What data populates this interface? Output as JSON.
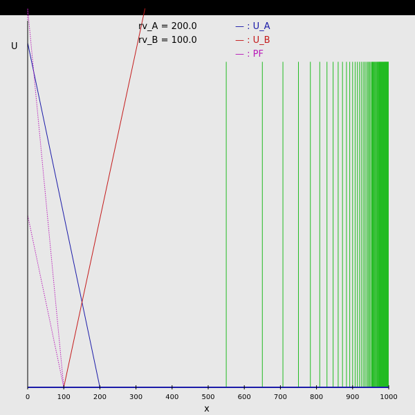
{
  "chart_data": {
    "type": "line",
    "xlabel": "x",
    "ylabel": "U",
    "xlim": [
      0,
      1000
    ],
    "ylim": [
      0,
      1
    ],
    "x_ticks": [
      0,
      100,
      200,
      300,
      400,
      500,
      600,
      700,
      800,
      900,
      1000
    ],
    "params": [
      {
        "label": "rv_A = 200.0"
      },
      {
        "label": "rv_B = 100.0"
      }
    ],
    "legend": [
      {
        "text": "— : U_A",
        "color": "#1a1aa8"
      },
      {
        "text": "— : U_B",
        "color": "#c41a1a"
      },
      {
        "text": "— : PF",
        "color": "#b81ab8"
      }
    ],
    "series": [
      {
        "name": "U_A",
        "color": "#1a1aa8",
        "x": [
          0,
          200,
          1000
        ],
        "y": [
          1.0,
          0.0,
          0.0
        ]
      },
      {
        "name": "U_B",
        "color": "#c41a1a",
        "x": [
          0,
          100,
          325
        ],
        "y": [
          0.0,
          0.0,
          1.1
        ]
      },
      {
        "name": "PF",
        "color": "#b81ab8",
        "x": [
          0,
          0,
          100,
          0
        ],
        "y": [
          0.5,
          1.1,
          0.0,
          0.5
        ]
      }
    ],
    "vlines": {
      "color": "#22bb22",
      "x_start": 550,
      "x_end": 1000,
      "y_top": 0.945,
      "positions": [
        550,
        650,
        707,
        750,
        783,
        809,
        829,
        846,
        860,
        872,
        883,
        892,
        900,
        907,
        913,
        919,
        924,
        929,
        933,
        937,
        941,
        944,
        947,
        950,
        953,
        955,
        957,
        959,
        961,
        963,
        965,
        966,
        968,
        969,
        971,
        972,
        973,
        974,
        975,
        976,
        977,
        978,
        979,
        980,
        981,
        982,
        983,
        984,
        985,
        986,
        987,
        988,
        989,
        990,
        991,
        992,
        993,
        994,
        995,
        996,
        997,
        998,
        999
      ]
    }
  }
}
